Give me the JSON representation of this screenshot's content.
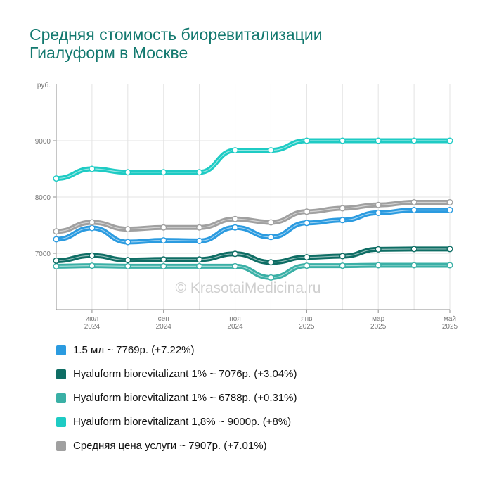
{
  "title_lines": [
    "Средняя стоимость биоревитализации",
    "Гиалуформ в Москве"
  ],
  "watermark": "© KrasotaiMedicina.ru",
  "chart_data": {
    "type": "line",
    "title": "Средняя стоимость биоревитализации Гиалуформ в Москве",
    "ylabel": "руб.",
    "xlabel": "",
    "ylim": [
      6000,
      10000
    ],
    "yticks": [
      7000,
      8000,
      9000
    ],
    "x": [
      "2024-06",
      "2024-07",
      "2024-08",
      "2024-09",
      "2024-10",
      "2024-11",
      "2024-12",
      "2025-01",
      "2025-02",
      "2025-03",
      "2025-04",
      "2025-05"
    ],
    "x_tick_labels": [
      {
        "x": "2024-07",
        "month": "июл",
        "year": "2024"
      },
      {
        "x": "2024-09",
        "month": "сен",
        "year": "2024"
      },
      {
        "x": "2024-11",
        "month": "ноя",
        "year": "2024"
      },
      {
        "x": "2025-01",
        "month": "янв",
        "year": "2025"
      },
      {
        "x": "2025-03",
        "month": "мар",
        "year": "2025"
      },
      {
        "x": "2025-05",
        "month": "май",
        "year": "2025"
      }
    ],
    "grid": true,
    "legend_position": "bottom",
    "series": [
      {
        "legend": "1.5 мл ~ 7769р. (+7.22%)",
        "color": "#2b9be0",
        "values": [
          7250,
          7450,
          7200,
          7230,
          7220,
          7460,
          7290,
          7540,
          7590,
          7720,
          7769,
          7769
        ]
      },
      {
        "legend": "Hyaluform biorevitalizant 1% ~ 7076р. (+3.04%)",
        "color": "#0e6d64",
        "values": [
          6870,
          6960,
          6880,
          6890,
          6890,
          6990,
          6840,
          6930,
          6950,
          7070,
          7076,
          7076
        ]
      },
      {
        "legend": "Hyaluform biorevitalizant 1% ~ 6788р. (+0.31%)",
        "color": "#3ab0a6",
        "values": [
          6770,
          6780,
          6770,
          6770,
          6770,
          6770,
          6570,
          6780,
          6780,
          6788,
          6788,
          6788
        ]
      },
      {
        "legend": "Hyaluform biorevitalizant 1,8% ~ 9000р. (+8%)",
        "color": "#1ecbc4",
        "values": [
          8330,
          8500,
          8440,
          8440,
          8440,
          8830,
          8830,
          9000,
          9000,
          9000,
          9000,
          9000
        ]
      },
      {
        "legend": "Средняя цена услуги ~ 7907р. (+7.01%)",
        "color": "#a0a0a0",
        "values": [
          7390,
          7550,
          7430,
          7460,
          7460,
          7610,
          7550,
          7740,
          7800,
          7860,
          7907,
          7907
        ]
      }
    ],
    "draw_order": [
      2,
      1,
      0,
      4,
      3
    ]
  }
}
